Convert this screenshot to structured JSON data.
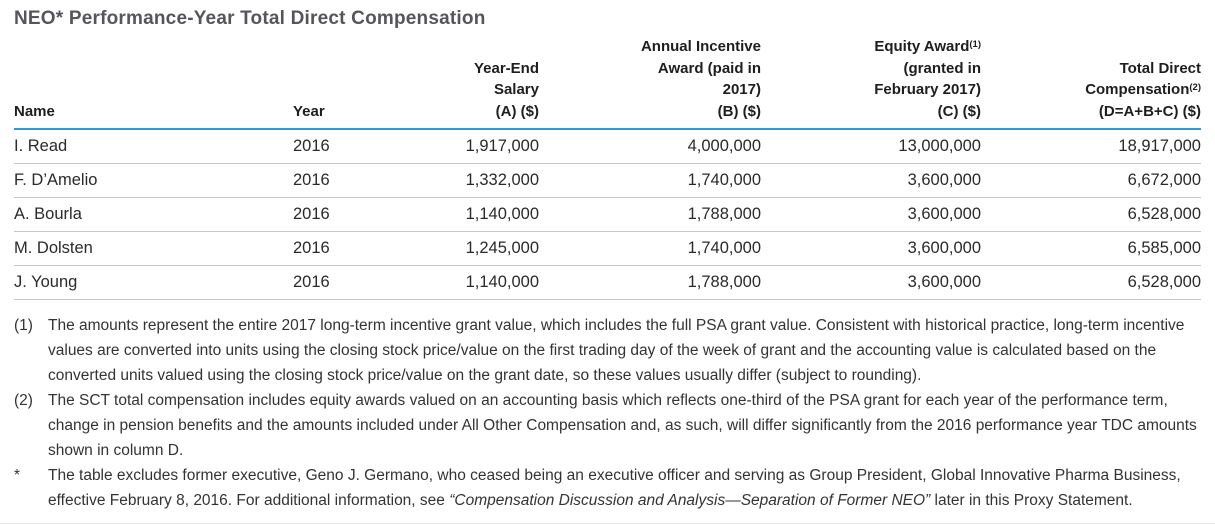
{
  "title": "NEO* Performance-Year Total Direct Compensation",
  "accent_colors": {
    "header_rule_blue": "#2d9bd5",
    "row_rule_gray": "#c6c6c6",
    "title_gray": "#54565b"
  },
  "table": {
    "columns": [
      {
        "pre": "Name",
        "sup": "",
        "post": ""
      },
      {
        "pre": "Year",
        "sup": "",
        "post": ""
      },
      {
        "pre": "Year-End\nSalary\n(A) ($)",
        "sup": "",
        "post": ""
      },
      {
        "pre": "Annual Incentive\nAward (paid in\n2017)\n(B) ($)",
        "sup": "",
        "post": ""
      },
      {
        "pre": "Equity Award",
        "sup": "(1)",
        "post": "\n(granted in\nFebruary 2017)\n(C) ($)"
      },
      {
        "pre": "Total Direct\nCompensation",
        "sup": "(2)",
        "post": "\n(D=A+B+C) ($)"
      }
    ],
    "rows": [
      {
        "name": "I. Read",
        "year": "2016",
        "salary": "1,917,000",
        "annual_incentive": "4,000,000",
        "equity_award": "13,000,000",
        "total": "18,917,000"
      },
      {
        "name": "F. D’Amelio",
        "year": "2016",
        "salary": "1,332,000",
        "annual_incentive": "1,740,000",
        "equity_award": "3,600,000",
        "total": "6,672,000"
      },
      {
        "name": "A. Bourla",
        "year": "2016",
        "salary": "1,140,000",
        "annual_incentive": "1,788,000",
        "equity_award": "3,600,000",
        "total": "6,528,000"
      },
      {
        "name": "M. Dolsten",
        "year": "2016",
        "salary": "1,245,000",
        "annual_incentive": "1,740,000",
        "equity_award": "3,600,000",
        "total": "6,585,000"
      },
      {
        "name": "J. Young",
        "year": "2016",
        "salary": "1,140,000",
        "annual_incentive": "1,788,000",
        "equity_award": "3,600,000",
        "total": "6,528,000"
      }
    ]
  },
  "footnotes": [
    {
      "marker": "(1)",
      "text_before": "The amounts represent the entire 2017 long-term incentive grant value, which includes the full PSA grant value. Consistent with historical practice, long-term incentive values are converted into units using the closing stock price/value on the first trading day of the week of grant and the accounting value is calculated based on the converted units valued using the closing stock price/value on the grant date, so these values usually differ (subject to rounding).",
      "text_italic": "",
      "text_after": ""
    },
    {
      "marker": "(2)",
      "text_before": "The SCT total compensation includes equity awards valued on an accounting basis which reflects one-third of the PSA grant for each year of the performance term, change in pension benefits and the amounts included under All Other Compensation and, as such, will differ significantly from the 2016 performance year TDC amounts shown in column D.",
      "text_italic": "",
      "text_after": ""
    },
    {
      "marker": "*",
      "text_before": "The table excludes former executive, Geno J. Germano, who ceased being an executive officer and serving as Group President, Global Innovative Pharma Business, effective February 8, 2016. For additional information, see ",
      "text_italic": "“Compensation Discussion and Analysis—Separation of Former NEO”",
      "text_after": " later in this Proxy Statement."
    }
  ]
}
